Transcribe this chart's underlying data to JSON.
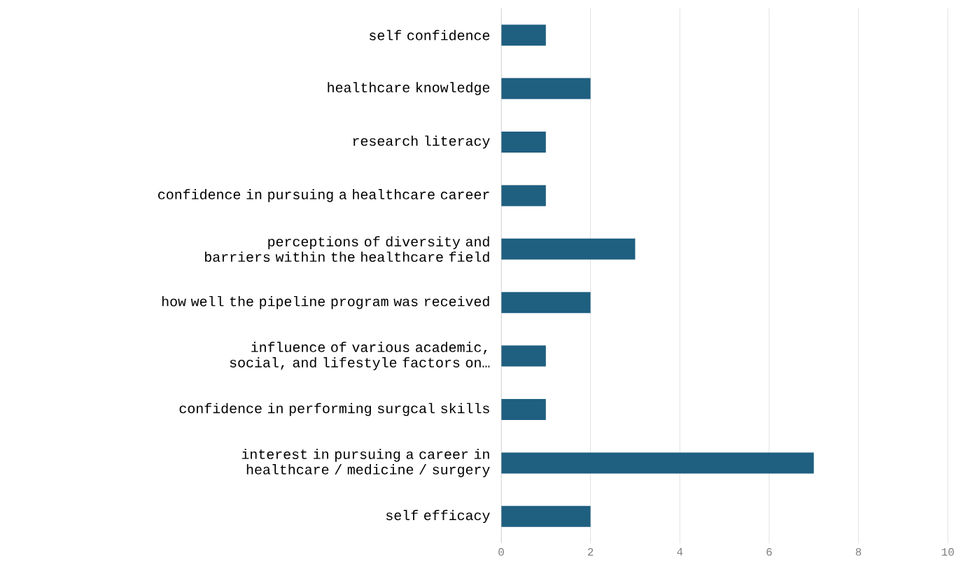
{
  "chart_data": {
    "type": "bar",
    "orientation": "horizontal",
    "categories": [
      "self confidence",
      "healthcare knowledge",
      "research literacy",
      "confidence in pursuing a healthcare career",
      "perceptions of diversity and barriers within the healthcare field",
      "how well the pipeline program was received",
      "influence of various academic, social, and lifestyle factors on…",
      "confidence in performing surgcal skills",
      "interest in pursuing a career in healthcare / medicine / surgery",
      "self efficacy"
    ],
    "values": [
      1,
      2,
      1,
      1,
      3,
      2,
      1,
      1,
      7,
      2
    ],
    "color": "#1f5f80",
    "xlim": [
      0,
      10
    ],
    "xticks": [
      0,
      2,
      4,
      6,
      8,
      10
    ],
    "grid": "x"
  }
}
